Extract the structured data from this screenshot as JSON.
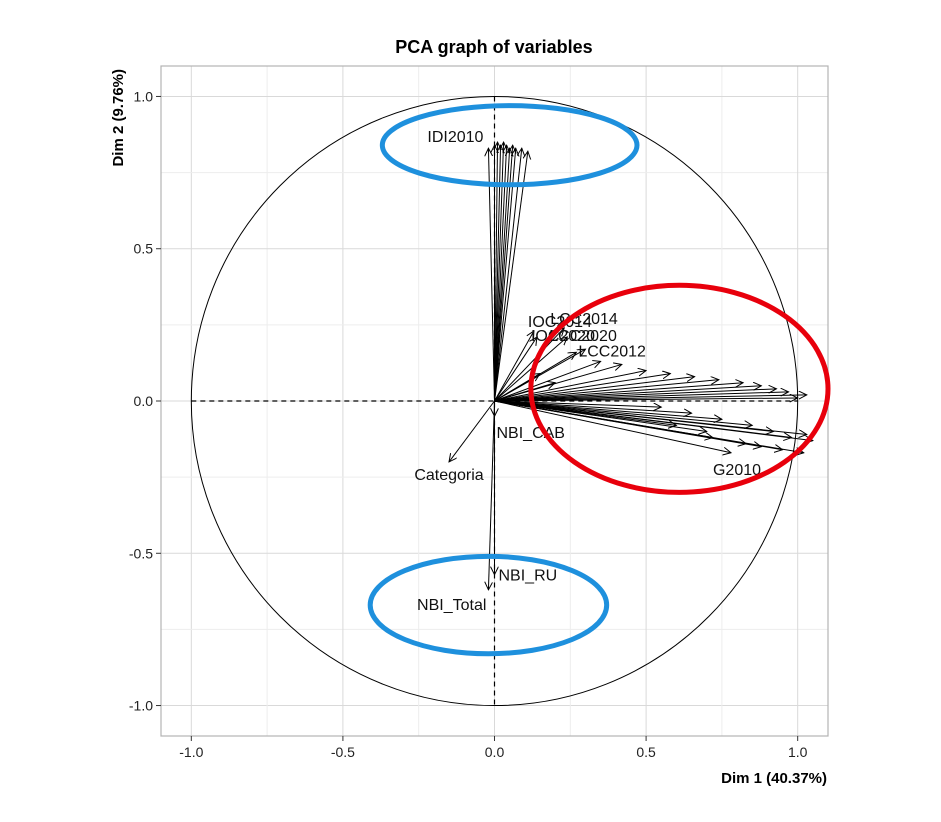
{
  "chart_data": {
    "type": "scatter",
    "subtype": "pca-correlation-circle",
    "title": "PCA graph of variables",
    "xlabel": "Dim 1 (40.37%)",
    "ylabel": "Dim 2 (9.76%)",
    "xlim": [
      -1.1,
      1.1
    ],
    "ylim": [
      -1.1,
      1.1
    ],
    "xticks": [
      -1.0,
      -0.5,
      0.0,
      0.5,
      1.0
    ],
    "yticks": [
      -1.0,
      -0.5,
      0.0,
      0.5,
      1.0
    ],
    "xtick_labels": [
      "-1.0",
      "-0.5",
      "0.0",
      "0.5",
      "1.0"
    ],
    "ytick_labels": [
      "-1.0",
      "-0.5",
      "0.0",
      "0.5",
      "1.0"
    ],
    "grid": true,
    "unit_circle": true,
    "labeled_variables": [
      {
        "name": "IDI2010",
        "x": -0.02,
        "y": 0.83
      },
      {
        "name": "Categoria",
        "x": -0.15,
        "y": -0.2
      },
      {
        "name": "NBI_CAB",
        "x": 0.0,
        "y": -0.05
      },
      {
        "name": "NBI_RU",
        "x": 0.0,
        "y": -0.57
      },
      {
        "name": "NBI_Total",
        "x": -0.02,
        "y": -0.62
      },
      {
        "name": "IOC2014",
        "x": 0.13,
        "y": 0.23
      },
      {
        "name": "LCC2014",
        "x": 0.23,
        "y": 0.24
      },
      {
        "name": "IOC2020",
        "x": 0.14,
        "y": 0.21
      },
      {
        "name": "LCC2020",
        "x": 0.24,
        "y": 0.21
      },
      {
        "name": "LCC2012",
        "x": 0.27,
        "y": 0.16
      },
      {
        "name": "G2010",
        "x": 0.78,
        "y": -0.17
      }
    ],
    "unlabeled_arrows": [
      {
        "x": 0.0,
        "y": 0.84
      },
      {
        "x": 0.01,
        "y": 0.85
      },
      {
        "x": 0.02,
        "y": 0.84
      },
      {
        "x": 0.03,
        "y": 0.85
      },
      {
        "x": 0.04,
        "y": 0.84
      },
      {
        "x": 0.05,
        "y": 0.83
      },
      {
        "x": 0.06,
        "y": 0.84
      },
      {
        "x": 0.07,
        "y": 0.83
      },
      {
        "x": 0.09,
        "y": 0.83
      },
      {
        "x": 0.11,
        "y": 0.82
      },
      {
        "x": 0.3,
        "y": 0.17
      },
      {
        "x": 0.35,
        "y": 0.13
      },
      {
        "x": 0.42,
        "y": 0.12
      },
      {
        "x": 0.5,
        "y": 0.1
      },
      {
        "x": 0.58,
        "y": 0.09
      },
      {
        "x": 0.66,
        "y": 0.08
      },
      {
        "x": 0.74,
        "y": 0.07
      },
      {
        "x": 0.82,
        "y": 0.06
      },
      {
        "x": 0.88,
        "y": 0.05
      },
      {
        "x": 0.93,
        "y": 0.04
      },
      {
        "x": 0.97,
        "y": 0.03
      },
      {
        "x": 1.0,
        "y": 0.01
      },
      {
        "x": 1.03,
        "y": 0.02
      },
      {
        "x": 0.15,
        "y": 0.09
      },
      {
        "x": 0.2,
        "y": 0.06
      },
      {
        "x": 0.55,
        "y": -0.02
      },
      {
        "x": 0.65,
        "y": -0.04
      },
      {
        "x": 0.75,
        "y": -0.06
      },
      {
        "x": 0.85,
        "y": -0.08
      },
      {
        "x": 0.92,
        "y": -0.1
      },
      {
        "x": 0.98,
        "y": -0.12
      },
      {
        "x": 1.03,
        "y": -0.11
      },
      {
        "x": 1.05,
        "y": -0.13
      },
      {
        "x": 0.6,
        "y": -0.08
      },
      {
        "x": 0.72,
        "y": -0.12
      },
      {
        "x": 0.83,
        "y": -0.14
      },
      {
        "x": 0.95,
        "y": -0.16
      },
      {
        "x": 1.02,
        "y": -0.17
      },
      {
        "x": 0.88,
        "y": -0.15
      },
      {
        "x": 0.7,
        "y": -0.1
      }
    ],
    "highlights": [
      {
        "shape": "ellipse",
        "color": "#1e90dd",
        "cx": 0.05,
        "cy": 0.84,
        "rx": 0.42,
        "ry": 0.13
      },
      {
        "shape": "ellipse",
        "color": "#e8000c",
        "cx": 0.61,
        "cy": 0.04,
        "rx": 0.49,
        "ry": 0.34
      },
      {
        "shape": "ellipse",
        "color": "#1e90dd",
        "cx": -0.02,
        "cy": -0.67,
        "rx": 0.39,
        "ry": 0.16
      }
    ]
  }
}
